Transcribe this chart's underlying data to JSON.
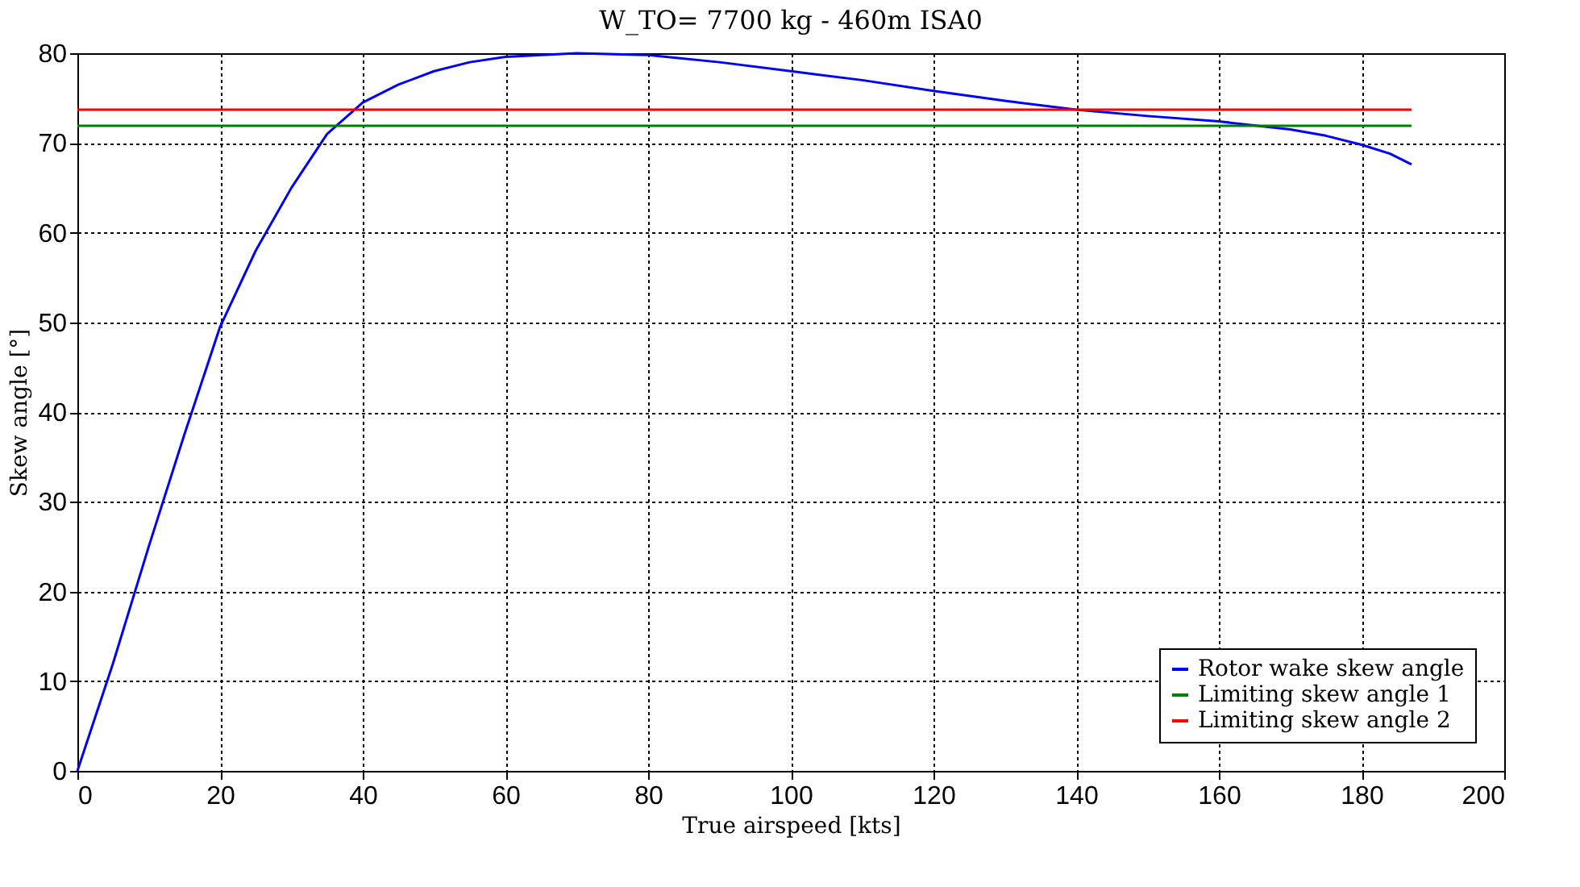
{
  "chart_data": {
    "type": "line",
    "title": "W_TO= 7700 kg - 460m ISA0",
    "xlabel": "True airspeed [kts]",
    "ylabel": "Skew angle [°]",
    "xlim": [
      0,
      200
    ],
    "xticks": [
      0,
      20,
      40,
      60,
      80,
      100,
      120,
      140,
      160,
      180,
      200
    ],
    "ylim": [
      0,
      80
    ],
    "yticks": [
      0,
      10,
      20,
      30,
      40,
      50,
      60,
      70,
      80
    ],
    "grid": true,
    "legend": "bottom right",
    "line_style": "solid",
    "series": [
      {
        "name": "Rotor wake skew angle",
        "color": "#0000ff",
        "x": [
          0,
          5,
          10,
          15,
          20,
          25,
          30,
          35,
          40,
          45,
          50,
          55,
          60,
          70,
          80,
          90,
          100,
          110,
          120,
          130,
          140,
          150,
          160,
          170,
          175,
          180,
          184,
          187
        ],
        "values": [
          0,
          12,
          25,
          37.5,
          49.5,
          58,
          65,
          71,
          74.5,
          76.5,
          78,
          79,
          79.6,
          80,
          79.8,
          79,
          78,
          77,
          75.8,
          74.7,
          73.7,
          73,
          72.4,
          71.5,
          70.8,
          69.8,
          68.8,
          67.6
        ]
      },
      {
        "name": "Limiting skew angle 1",
        "color": "#008000",
        "x": [
          0,
          187
        ],
        "values": [
          71.9,
          71.9
        ]
      },
      {
        "name": "Limiting skew angle 2",
        "color": "#ff0000",
        "x": [
          0,
          187
        ],
        "values": [
          73.7,
          73.7
        ]
      }
    ]
  }
}
